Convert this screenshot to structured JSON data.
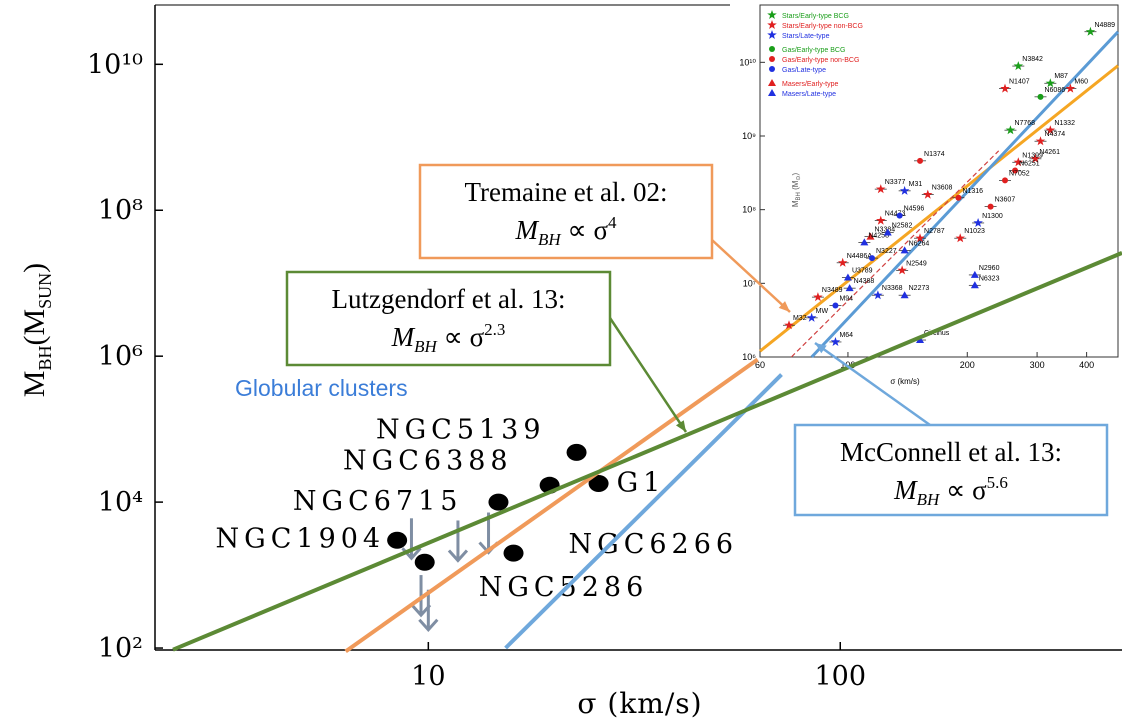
{
  "chart_data": {
    "type": "scatter",
    "x_label": "σ (km/s)",
    "y_label": [
      "M",
      "BH",
      "(M",
      "SUN",
      ")"
    ],
    "log_x": true,
    "log_y": true,
    "xlim": [
      2.17,
      483
    ],
    "ylim": [
      94,
      65000000000
    ],
    "xticks": [
      10,
      100
    ],
    "yticks": [
      {
        "value": 100,
        "label": "10²"
      },
      {
        "value": 10000,
        "label": "10⁴"
      },
      {
        "value": 1000000,
        "label": "10⁶"
      },
      {
        "value": 100000000,
        "label": "10⁸"
      },
      {
        "value": 10000000000,
        "label": "10¹⁰"
      }
    ],
    "series": [
      {
        "name": "Globular clusters",
        "name_color": "#3b7dd8",
        "color": "#000000",
        "x": [
          8.4,
          9.8,
          14.8,
          16.1,
          19.7,
          22.9,
          25.9
        ],
        "y": [
          3000,
          1500,
          10000,
          2000,
          17000,
          48000,
          18000
        ],
        "labels": [
          "NGC1904",
          "NGC5286",
          "NGC6715",
          "NGC6266",
          "NGC6388",
          "NGC5139",
          "G1"
        ]
      }
    ],
    "upper_limits": {
      "color": "#7f8ea3",
      "x": [
        9.1,
        9.6,
        10,
        11.8,
        14
      ],
      "y": [
        6000,
        1000,
        630,
        5600,
        7200
      ]
    },
    "fits": [
      {
        "color": "#f09a5a",
        "x": [
          6.3,
          63
        ],
        "y": [
          90,
          900000
        ]
      },
      {
        "color": "#6fa8dc",
        "x": [
          15.4,
          72
        ],
        "y": [
          100,
          560000
        ]
      },
      {
        "color": "#5c8a35",
        "x": [
          2.4,
          483
        ],
        "y": [
          95,
          26000000
        ]
      }
    ],
    "annotations": [
      {
        "title": "Tremaine et al. 02:",
        "formula": [
          "M",
          "BH",
          " ∝ σ",
          "4"
        ],
        "color": "#f09a5a"
      },
      {
        "title": "Lutzgendorf et al. 13:",
        "formula": [
          "M",
          "BH",
          " ∝ σ",
          "2.3"
        ],
        "color": "#5c8a35"
      },
      {
        "title": "McConnell et al. 13:",
        "formula": [
          "M",
          "BH",
          " ∝ σ",
          "5.6"
        ],
        "color": "#6fa8dc"
      }
    ],
    "inset": {
      "x_label": "σ (km/s)",
      "y_label": [
        "M",
        "BH",
        " (M",
        "⊙",
        ")"
      ],
      "log_x": true,
      "log_y": true,
      "xlim": [
        60,
        480
      ],
      "ylim": [
        1000000,
        60000000000
      ],
      "xticks": [
        60,
        100,
        200,
        300,
        400
      ],
      "yticks": [
        {
          "value": 1000000,
          "label": "10⁶"
        },
        {
          "value": 10000000,
          "label": "10⁷"
        },
        {
          "value": 100000000,
          "label": "10⁸"
        },
        {
          "value": 1000000000,
          "label": "10⁹"
        },
        {
          "value": 10000000000,
          "label": "10¹⁰"
        }
      ],
      "fits": [
        {
          "color": "#f5a623",
          "dash": false,
          "x": [
            60,
            480
          ],
          "y": [
            1200000,
            9000000000
          ]
        },
        {
          "color": "#5b9bd5",
          "dash": false,
          "x": [
            81,
            480
          ],
          "y": [
            1000000,
            26000000000
          ]
        },
        {
          "color": "#d04040",
          "dash": true,
          "x": [
            72,
            240
          ],
          "y": [
            1000000,
            630000000
          ]
        }
      ],
      "series": [
        {
          "name": "Stars/Early-type BCG",
          "color": "#1a9e1a",
          "marker": "star",
          "x": [
            409,
            269,
            324,
            257
          ],
          "y": [
            26000000000,
            8900000000,
            5200000000,
            1200000000
          ],
          "labels": [
            "N4889",
            "N3842",
            "M87",
            "N7768"
          ]
        },
        {
          "name": "Stars/Early-type non-BCG",
          "color": "#e02020",
          "marker": "star",
          "x": [
            249,
            364,
            324,
            306,
            297,
            269,
            121,
            159,
            121,
            152,
            192,
            137,
            97,
            84,
            71
          ],
          "y": [
            4400000000,
            4400000000,
            1200000000,
            850000000,
            490000000,
            440000000,
            190000000,
            160000000,
            71000000,
            41000000,
            41000000,
            15000000,
            19000000,
            6500000,
            2700000
          ],
          "labels": [
            "N1407",
            "M60",
            "N1332",
            "N4374",
            "N4261",
            "N1399",
            "N3377",
            "N3608",
            "N4473",
            "N2787",
            "N1023",
            "N2549",
            "N4486A",
            "N3489",
            "M32"
          ]
        },
        {
          "name": "Stars/Late-type",
          "color": "#2030e0",
          "marker": "star",
          "x": [
            81,
            93,
            119,
            213,
            139
          ],
          "y": [
            3400000,
            1600000,
            6900000,
            66000000,
            180000000
          ],
          "labels": [
            "MW",
            "M64",
            "N3368",
            "N1300",
            "M31"
          ]
        },
        {
          "name": "Gas/Early-type BCG",
          "color": "#1a9e1a",
          "marker": "circle",
          "x": [
            306
          ],
          "y": [
            3400000000
          ],
          "labels": [
            "N6086"
          ]
        },
        {
          "name": "Gas/Early-type non-BCG",
          "color": "#e02020",
          "marker": "circle",
          "x": [
            152,
            264,
            249,
            229,
            190
          ],
          "y": [
            460000000,
            340000000,
            250000000,
            110000000,
            145000000
          ],
          "labels": [
            "N1374",
            "N6251",
            "N7052",
            "N3607",
            "N1316"
          ]
        },
        {
          "name": "Gas/Late-type",
          "color": "#2030e0",
          "marker": "circle",
          "x": [
            135,
            115,
            93
          ],
          "y": [
            83000000,
            22000000,
            5000000
          ],
          "labels": [
            "N4596",
            "N3227",
            "M94"
          ]
        },
        {
          "name": "Masers/Early-type",
          "color": "#e02020",
          "marker": "triangle",
          "x": [
            114
          ],
          "y": [
            43000000
          ],
          "labels": [
            "N3384"
          ]
        },
        {
          "name": "Masers/Late-type",
          "color": "#2030e0",
          "marker": "triangle",
          "x": [
            110,
            139,
            100,
            209,
            209,
            101,
            139,
            126,
            152
          ],
          "y": [
            36000000,
            28000000,
            12000000,
            13000000,
            9400000,
            8600000,
            6900000,
            49000000,
            1700000
          ],
          "labels": [
            "N4258",
            "N6264",
            "U3789",
            "N2960",
            "N6323",
            "N4388",
            "N2273",
            "N2582",
            "Circinus"
          ]
        }
      ]
    }
  }
}
